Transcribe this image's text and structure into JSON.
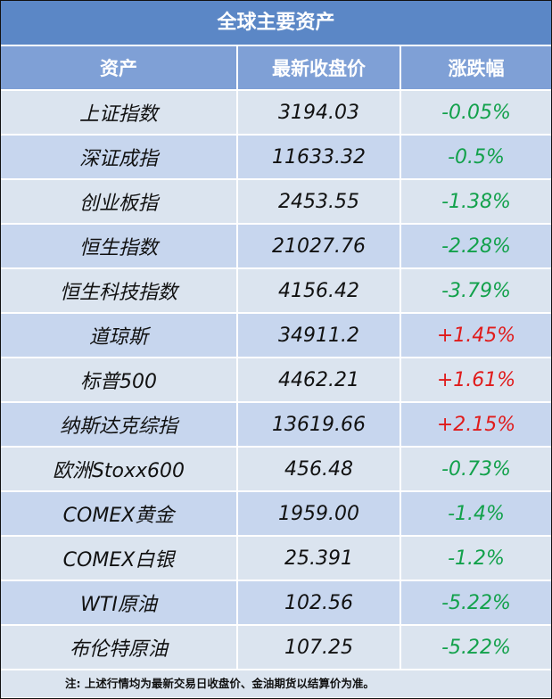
{
  "title": "全球主要资产",
  "headers": {
    "asset": "资产",
    "price": "最新收盘价",
    "change": "涨跌幅"
  },
  "rows": [
    {
      "asset": "上证指数",
      "price": "3194.03",
      "change": "-0.05%",
      "dir": "neg"
    },
    {
      "asset": "深证成指",
      "price": "11633.32",
      "change": "-0.5%",
      "dir": "neg"
    },
    {
      "asset": "创业板指",
      "price": "2453.55",
      "change": "-1.38%",
      "dir": "neg"
    },
    {
      "asset": "恒生指数",
      "price": "21027.76",
      "change": "-2.28%",
      "dir": "neg"
    },
    {
      "asset": "恒生科技指数",
      "price": "4156.42",
      "change": "-3.79%",
      "dir": "neg"
    },
    {
      "asset": "道琼斯",
      "price": "34911.2",
      "change": "+1.45%",
      "dir": "pos"
    },
    {
      "asset": "标普500",
      "price": "4462.21",
      "change": "+1.61%",
      "dir": "pos"
    },
    {
      "asset": "纳斯达克综指",
      "price": "13619.66",
      "change": "+2.15%",
      "dir": "pos"
    },
    {
      "asset": "欧洲Stoxx600",
      "price": "456.48",
      "change": "-0.73%",
      "dir": "neg"
    },
    {
      "asset": "COMEX黄金",
      "price": "1959.00",
      "change": "-1.4%",
      "dir": "neg"
    },
    {
      "asset": "COMEX白银",
      "price": "25.391",
      "change": "-1.2%",
      "dir": "neg"
    },
    {
      "asset": "WTI原油",
      "price": "102.56",
      "change": "-5.22%",
      "dir": "neg"
    },
    {
      "asset": "布伦特原油",
      "price": "107.25",
      "change": "-5.22%",
      "dir": "neg"
    }
  ],
  "colors": {
    "title_bg": "#5b87c6",
    "header_bg": "#7fa0d6",
    "row_odd": "#dbe4ef",
    "row_even": "#c7d6ee",
    "negative": "#12a14b",
    "positive": "#e01b1b"
  },
  "note": "注: 上述行情均为最新交易日收盘价、金油期货以结算价为准。"
}
